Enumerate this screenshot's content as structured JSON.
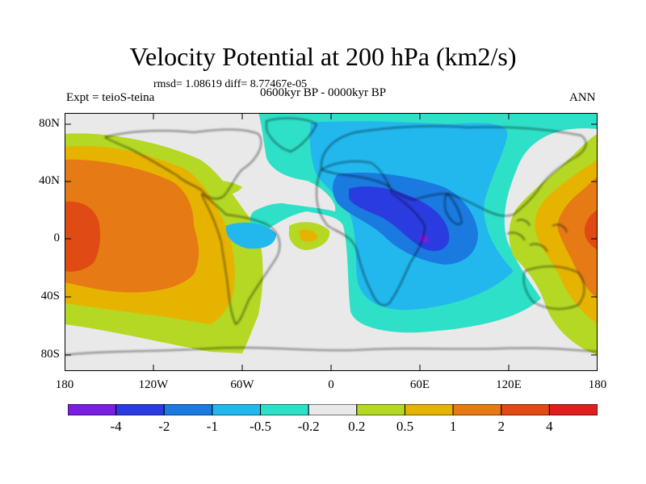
{
  "header": {
    "title": "Velocity Potential at 200 hPa (km2/s)",
    "stats": "rmsd= 1.08619 diff= 8.77467e-05",
    "experiment": "Expt = teioS-teina",
    "period": "0600kyr BP - 0000kyr BP",
    "season": "ANN"
  },
  "axes": {
    "lat_labels": [
      "80N",
      "40N",
      "0",
      "40S",
      "80S"
    ],
    "lon_labels": [
      "180",
      "120W",
      "60W",
      "0",
      "60E",
      "120E",
      "180"
    ]
  },
  "colorbar": {
    "labels": [
      "-4",
      "-2",
      "-1",
      "-0.5",
      "-0.2",
      "0.2",
      "0.5",
      "1",
      "2",
      "4"
    ],
    "colors": [
      "#7a1fe0",
      "#2a3ce0",
      "#1a7ae0",
      "#22b8ee",
      "#2ee0c8",
      "#e9e9e9",
      "#b4d824",
      "#e6b400",
      "#e67a14",
      "#e04a14",
      "#e01e1e"
    ]
  },
  "map_colors": {
    "background": "#e9e9e9",
    "coast": "#000000"
  }
}
